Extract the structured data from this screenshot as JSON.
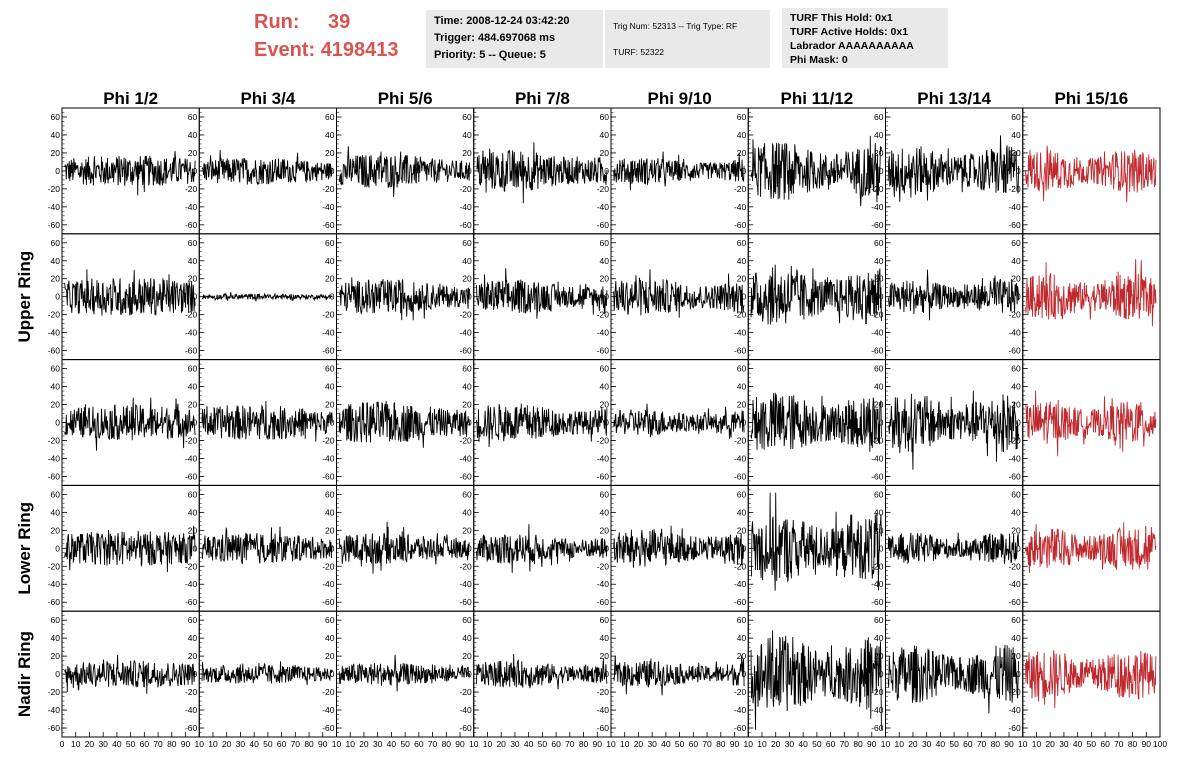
{
  "header": {
    "run_label": "Run:",
    "run_value": "39",
    "event_label": "Event:",
    "event_value": "4198413",
    "time": "Time: 2008-12-24 03:42:20",
    "trigger": "Trigger: 484.697068 ms",
    "priority": "Priority: 5 -- Queue: 5",
    "trig_num": "Trig Num: 52313 -- Trig Type: RF",
    "turf": "TURF: 52322",
    "turf_this_hold": "TURF This Hold: 0x1",
    "turf_active_holds": "TURF Active Holds: 0x1",
    "labrador": "Labrador AAAAAAAAAA",
    "phi_mask": "Phi Mask: 0"
  },
  "colors": {
    "trace": "#000000",
    "highlight_trace": "#c0282d",
    "run_text": "#d9534f"
  },
  "chart_data": {
    "type": "line",
    "columns": [
      "Phi 1/2",
      "Phi 3/4",
      "Phi 5/6",
      "Phi 7/8",
      "Phi 9/10",
      "Phi 11/12",
      "Phi 13/14",
      "Phi 15/16"
    ],
    "rows": [
      "",
      "Upper Ring",
      "",
      "Lower Ring",
      "Nadir Ring"
    ],
    "highlight_column": 7,
    "ylim": [
      -70,
      70
    ],
    "y_ticks": [
      -60,
      -40,
      -20,
      0,
      20,
      40,
      60
    ],
    "xlim": [
      0,
      100
    ],
    "x_ticks": [
      0,
      10,
      20,
      30,
      40,
      50,
      60,
      70,
      80,
      90,
      100
    ],
    "x_tick_labels": [
      "0",
      "10",
      "20",
      "30",
      "40",
      "50",
      "60",
      "70",
      "80",
      "90",
      "10",
      "10",
      "20",
      "30",
      "40",
      "50",
      "60",
      "70",
      "80",
      "90",
      "10",
      "10",
      "20",
      "30",
      "40",
      "50",
      "60",
      "70",
      "80",
      "90",
      "10",
      "10",
      "20",
      "30",
      "40",
      "50",
      "60",
      "70",
      "80",
      "90",
      "10",
      "10",
      "20",
      "30",
      "40",
      "50",
      "60",
      "70",
      "80",
      "90",
      "10",
      "10",
      "20",
      "30",
      "40",
      "50",
      "60",
      "70",
      "80",
      "90",
      "10",
      "10",
      "20",
      "30",
      "40",
      "50",
      "60",
      "70",
      "80",
      "90",
      "10",
      "10",
      "20",
      "30",
      "40",
      "50",
      "60",
      "70",
      "80",
      "90",
      "100"
    ],
    "amplitudes": [
      [
        16,
        14,
        18,
        22,
        14,
        30,
        26,
        22
      ],
      [
        20,
        3,
        18,
        18,
        20,
        30,
        18,
        24
      ],
      [
        18,
        18,
        22,
        20,
        14,
        32,
        30,
        22
      ],
      [
        18,
        16,
        16,
        16,
        20,
        36,
        16,
        22
      ],
      [
        14,
        10,
        12,
        14,
        14,
        40,
        30,
        26
      ]
    ]
  }
}
